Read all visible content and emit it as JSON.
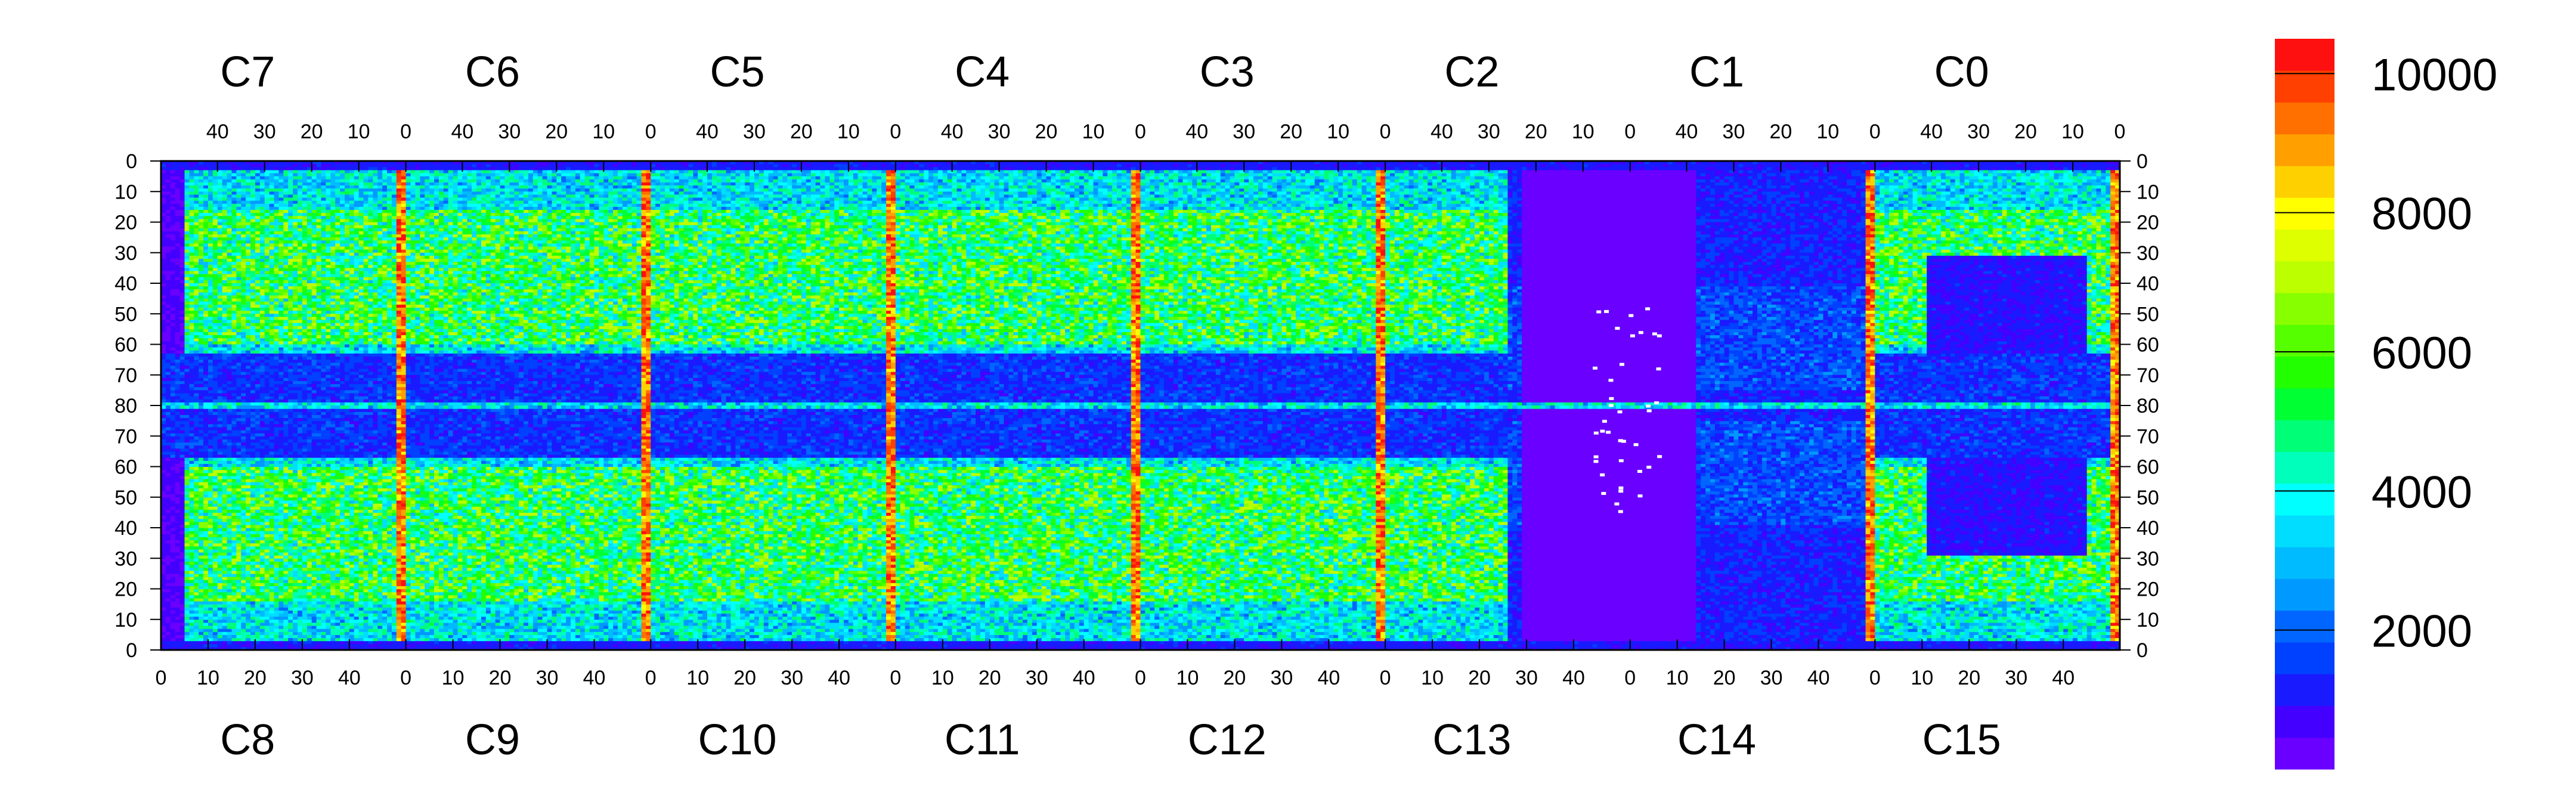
{
  "chart_data": {
    "type": "heatmap",
    "title": "",
    "chips_top": [
      "C7",
      "C6",
      "C5",
      "C4",
      "C3",
      "C2",
      "C1",
      "C0"
    ],
    "chips_bottom": [
      "C8",
      "C9",
      "C10",
      "C11",
      "C12",
      "C13",
      "C14",
      "C15"
    ],
    "top_tick_labels": [
      "40",
      "30",
      "20",
      "10",
      "0"
    ],
    "bottom_tick_labels": [
      "0",
      "10",
      "20",
      "30",
      "40"
    ],
    "y_tick_labels": [
      "0",
      "10",
      "20",
      "30",
      "40",
      "50",
      "60",
      "70",
      "80",
      "70",
      "60",
      "50",
      "40",
      "30",
      "20",
      "10",
      "0"
    ],
    "columns_per_chip": 52,
    "rows_per_half": 80,
    "colorbar": {
      "min": 0,
      "max": 10500,
      "ticks": [
        2000,
        4000,
        6000,
        8000,
        10000
      ],
      "tick_labels": [
        "2000",
        "4000",
        "6000",
        "8000",
        "10000"
      ],
      "colors": [
        "#6a00ff",
        "#4400ff",
        "#1a1aff",
        "#0040ff",
        "#0066ff",
        "#0099ff",
        "#00bbff",
        "#00ddff",
        "#00ffff",
        "#00ffbb",
        "#00ff77",
        "#00ff33",
        "#22ff00",
        "#55ff00",
        "#88ff00",
        "#bbff00",
        "#ddff00",
        "#ffff00",
        "#ffd000",
        "#ffa000",
        "#ff7000",
        "#ff4000",
        "#ff1010"
      ]
    },
    "features": {
      "hot_column_chips": [
        "C7/C8",
        "C6/C9",
        "C5/C10",
        "C4/C11",
        "C3/C12",
        "C0/C15"
      ],
      "low_occupancy_chips": [
        "C13",
        "C14",
        "C2 (right part)",
        "C1"
      ],
      "dead_pixels_region": "C13/C2 center"
    }
  }
}
